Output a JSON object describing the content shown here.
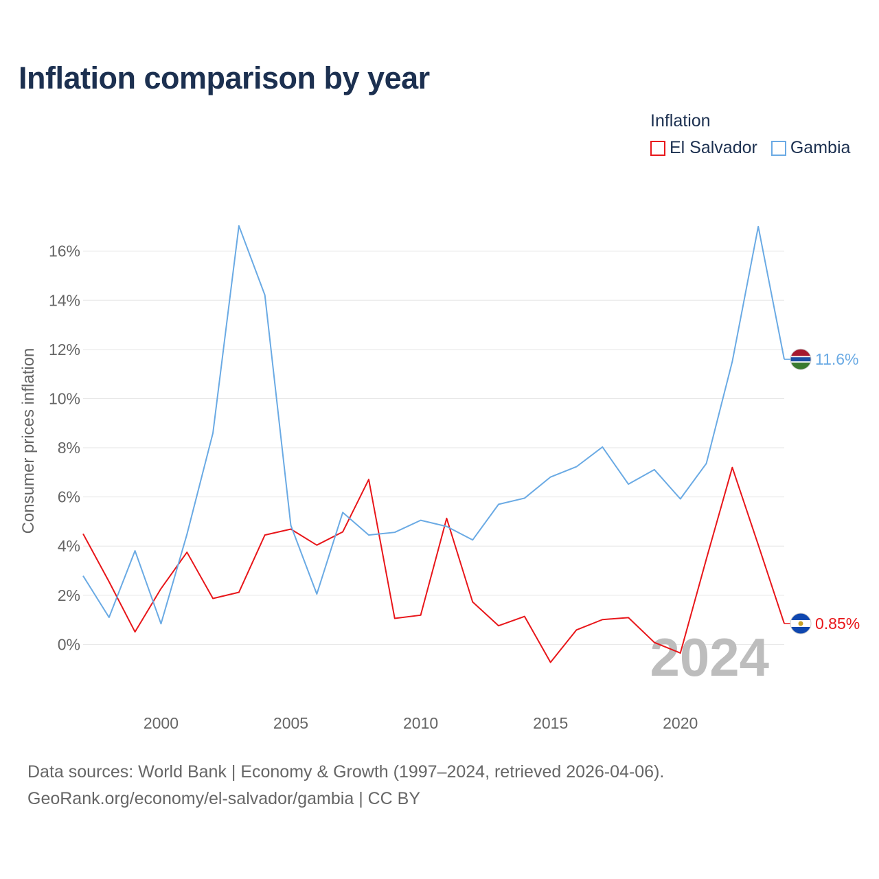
{
  "chart_data": {
    "type": "line",
    "title": "Inflation comparison by year",
    "legend_title": "Inflation",
    "ylabel": "Consumer prices inflation",
    "xlabel": "",
    "x": [
      1997,
      1998,
      1999,
      2000,
      2001,
      2002,
      2003,
      2004,
      2005,
      2006,
      2007,
      2008,
      2009,
      2010,
      2011,
      2012,
      2013,
      2014,
      2015,
      2016,
      2017,
      2018,
      2019,
      2020,
      2021,
      2022,
      2023,
      2024
    ],
    "xlim": [
      1997,
      2024
    ],
    "ylim": [
      -2,
      17.5
    ],
    "x_ticks": [
      2000,
      2005,
      2010,
      2015,
      2020
    ],
    "x_tick_labels": [
      "2000",
      "2005",
      "2010",
      "2015",
      "2020"
    ],
    "y_ticks": [
      0,
      2,
      4,
      6,
      8,
      10,
      12,
      14,
      16
    ],
    "y_tick_labels": [
      "0%",
      "2%",
      "4%",
      "6%",
      "8%",
      "10%",
      "12%",
      "14%",
      "16%"
    ],
    "grid": true,
    "year_watermark": "2024",
    "series": [
      {
        "name": "El Salvador",
        "color": "#e8161a",
        "end_label": "0.85%",
        "flag": "el-salvador-flag-icon",
        "values": [
          4.5,
          2.55,
          0.51,
          2.27,
          3.75,
          1.87,
          2.12,
          4.45,
          4.69,
          4.04,
          4.58,
          6.71,
          1.06,
          1.19,
          5.13,
          1.73,
          0.76,
          1.14,
          -0.73,
          0.59,
          1.01,
          1.09,
          0.08,
          -0.35,
          3.47,
          7.2,
          4.05,
          0.85
        ]
      },
      {
        "name": "Gambia",
        "color": "#6aaae4",
        "end_label": "11.6%",
        "flag": "gambia-flag-icon",
        "values": [
          2.79,
          1.1,
          3.81,
          0.84,
          4.48,
          8.6,
          17.03,
          14.21,
          4.84,
          2.05,
          5.37,
          4.45,
          4.56,
          5.05,
          4.8,
          4.25,
          5.7,
          5.95,
          6.81,
          7.23,
          8.03,
          6.52,
          7.11,
          5.92,
          7.36,
          11.51,
          17.0,
          11.6
        ]
      }
    ]
  },
  "footer": {
    "source_line1": "Data sources: World Bank | Economy & Growth (1997–2024, retrieved 2026-04-06).",
    "source_line2": "GeoRank.org/economy/el-salvador/gambia | CC BY"
  }
}
